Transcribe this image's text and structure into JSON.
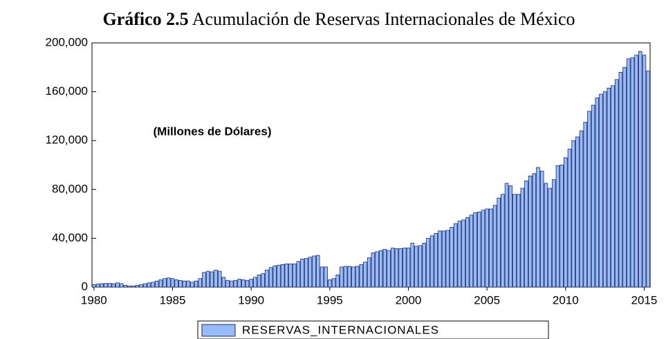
{
  "chart_data": {
    "type": "bar",
    "figure_label": "Gráfico 2.5",
    "title": "Acumulación de Reservas Internacionales de México",
    "annotation": "(Millones de Dólares)",
    "categories": [
      "1980",
      null,
      null,
      null,
      null,
      null,
      null,
      null,
      null,
      null,
      null,
      null,
      null,
      null,
      null,
      null,
      null,
      null,
      null,
      null,
      "1985",
      null,
      null,
      null,
      null,
      null,
      null,
      null,
      null,
      null,
      null,
      null,
      null,
      null,
      null,
      null,
      null,
      null,
      null,
      null,
      "1990",
      null,
      null,
      null,
      null,
      null,
      null,
      null,
      null,
      null,
      null,
      null,
      null,
      null,
      null,
      null,
      null,
      null,
      null,
      null,
      "1995",
      null,
      null,
      null,
      null,
      null,
      null,
      null,
      null,
      null,
      null,
      null,
      null,
      null,
      null,
      null,
      null,
      null,
      null,
      null,
      "2000",
      null,
      null,
      null,
      null,
      null,
      null,
      null,
      null,
      null,
      null,
      null,
      null,
      null,
      null,
      null,
      null,
      null,
      null,
      null,
      "2005",
      null,
      null,
      null,
      null,
      null,
      null,
      null,
      null,
      null,
      null,
      null,
      null,
      null,
      null,
      null,
      null,
      null,
      null,
      null,
      "2010",
      null,
      null,
      null,
      null,
      null,
      null,
      null,
      null,
      null,
      null,
      null,
      null,
      null,
      null,
      null,
      null,
      null,
      null,
      null,
      "2015",
      null
    ],
    "series": [
      {
        "name": "RESERVAS_INTERNACIONALES",
        "color": "#99bbf7",
        "values": [
          2000,
          2500,
          2800,
          3000,
          3000,
          2800,
          3500,
          2800,
          1500,
          1000,
          800,
          1500,
          2000,
          2800,
          3500,
          4000,
          5000,
          6000,
          7000,
          7500,
          7000,
          6000,
          5500,
          5000,
          5000,
          4000,
          5000,
          7000,
          12000,
          13000,
          12500,
          14000,
          13000,
          8000,
          5500,
          5000,
          5500,
          6500,
          6000,
          5500,
          6500,
          8000,
          10000,
          11000,
          14000,
          16000,
          17500,
          18000,
          18500,
          19000,
          19000,
          19000,
          21000,
          23000,
          23500,
          24500,
          25500,
          26000,
          16500,
          16500,
          6000,
          7000,
          10000,
          16500,
          17000,
          17000,
          16500,
          17000,
          18500,
          20500,
          24000,
          28000,
          29000,
          30000,
          31000,
          30000,
          32000,
          31500,
          31500,
          32000,
          32000,
          36000,
          33500,
          34000,
          36000,
          40000,
          42000,
          44000,
          46000,
          46000,
          46500,
          49000,
          52000,
          54000,
          55000,
          57000,
          59000,
          61000,
          61500,
          63000,
          64000,
          64000,
          67000,
          73000,
          76000,
          85000,
          83000,
          76000,
          76000,
          81000,
          87000,
          91000,
          93000,
          98000,
          95000,
          85000,
          81000,
          88000,
          99500,
          100000,
          106000,
          113000,
          120000,
          123000,
          128000,
          135000,
          144000,
          149000,
          155000,
          158000,
          160000,
          163000,
          165000,
          170000,
          176000,
          180000,
          187000,
          188000,
          190000,
          193000,
          190000,
          177000
        ]
      }
    ],
    "ylim": [
      0,
      200000
    ],
    "yticks": [
      0,
      {
        "value": 40000,
        "label": "40,000"
      },
      {
        "value": 80000,
        "label": "80,000"
      },
      {
        "value": 120000,
        "label": "120,000"
      },
      {
        "value": 160000,
        "label": "160,000"
      },
      {
        "value": 200000,
        "label": "200,000"
      }
    ]
  }
}
